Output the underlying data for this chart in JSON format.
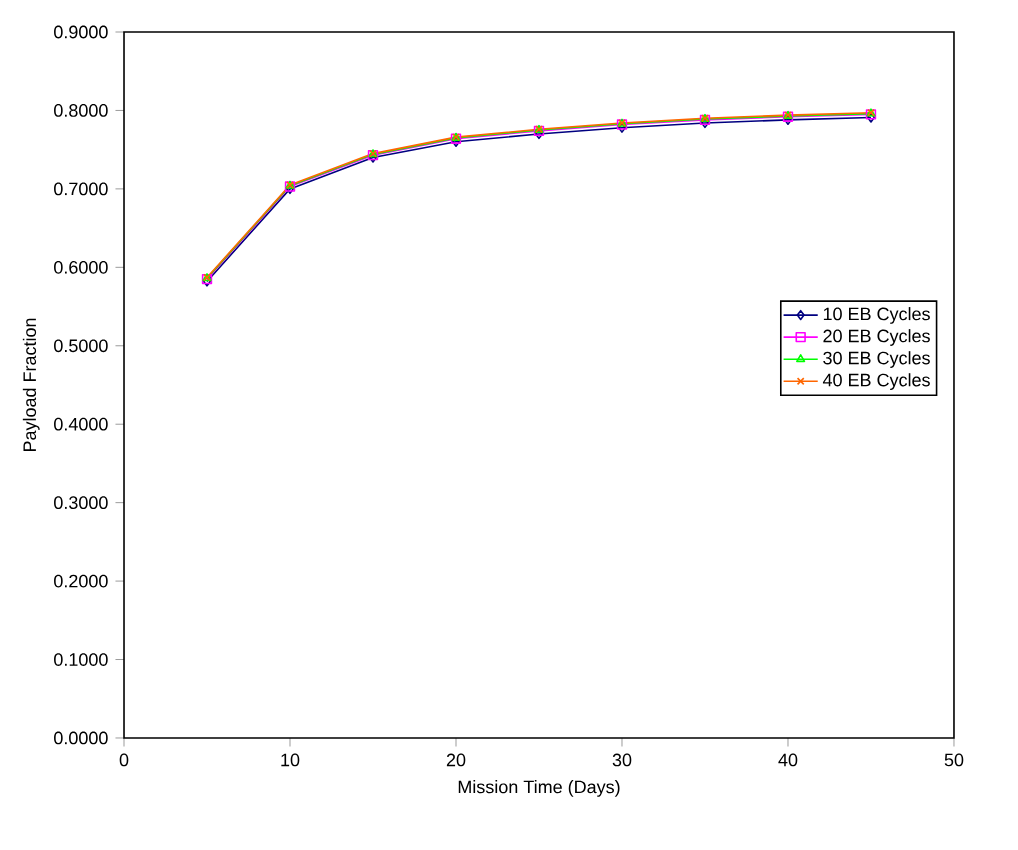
{
  "chart_data": {
    "type": "line",
    "xlabel": "Mission Time (Days)",
    "ylabel": "Payload Fraction",
    "x": [
      5,
      10,
      15,
      20,
      25,
      30,
      35,
      40,
      45
    ],
    "series": [
      {
        "name": "10 EB Cycles",
        "color": "#000080",
        "marker": "diamond",
        "values": [
          0.582,
          0.7,
          0.74,
          0.76,
          0.77,
          0.778,
          0.784,
          0.788,
          0.791
        ]
      },
      {
        "name": "20 EB Cycles",
        "color": "#ff00ff",
        "marker": "square",
        "values": [
          0.585,
          0.703,
          0.743,
          0.764,
          0.774,
          0.782,
          0.788,
          0.792,
          0.795
        ]
      },
      {
        "name": "30 EB Cycles",
        "color": "#00ff00",
        "marker": "triangle",
        "values": [
          0.586,
          0.704,
          0.744,
          0.765,
          0.775,
          0.783,
          0.789,
          0.793,
          0.796
        ]
      },
      {
        "name": "40 EB Cycles",
        "color": "#ff6600",
        "marker": "cross",
        "values": [
          0.587,
          0.705,
          0.745,
          0.766,
          0.776,
          0.784,
          0.79,
          0.794,
          0.797
        ]
      }
    ],
    "xlim": [
      0,
      50
    ],
    "xticks": [
      0,
      10,
      20,
      30,
      40,
      50
    ],
    "ylim": [
      0,
      0.9
    ],
    "yticks": [
      {
        "value": 0,
        "label": "0.0000"
      },
      {
        "value": 0.1,
        "label": "0.1000"
      },
      {
        "value": 0.2,
        "label": "0.2000"
      },
      {
        "value": 0.3,
        "label": "0.3000"
      },
      {
        "value": 0.4,
        "label": "0.4000"
      },
      {
        "value": 0.5,
        "label": "0.5000"
      },
      {
        "value": 0.6,
        "label": "0.6000"
      },
      {
        "value": 0.7,
        "label": "0.7000"
      },
      {
        "value": 0.8,
        "label": "0.8000"
      },
      {
        "value": 0.9,
        "label": "0.9000"
      }
    ],
    "grid": false,
    "legend": "right",
    "line_style": "solid"
  }
}
